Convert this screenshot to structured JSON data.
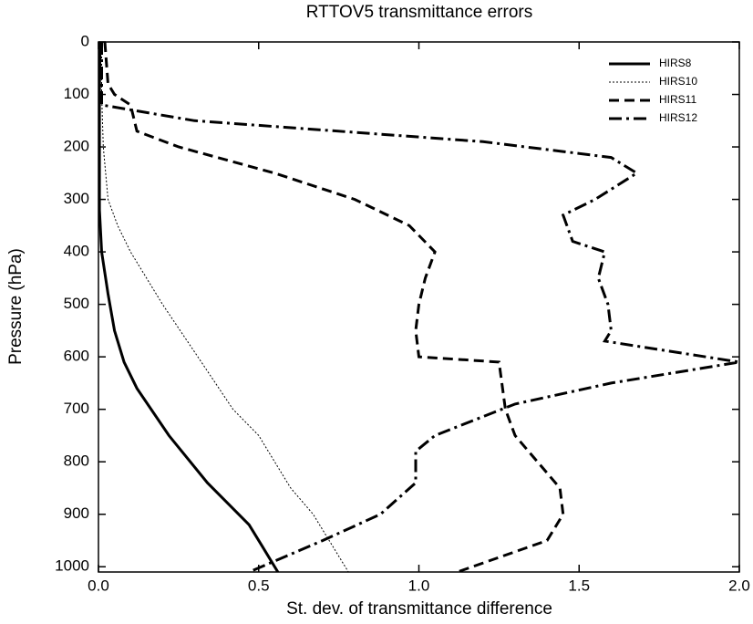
{
  "chart_data": {
    "type": "line",
    "title": "RTTOV5 transmittance errors",
    "xlabel": "St. dev. of transmittance difference",
    "ylabel": "Pressure (hPa)",
    "xlim": [
      0,
      2
    ],
    "ylim": [
      0,
      1010
    ],
    "y_inverted": true,
    "xticks": [
      {
        "value": 0,
        "label": "0.0"
      },
      0.5,
      {
        "value": 1,
        "label": "1.0"
      },
      1.5,
      {
        "value": 2,
        "label": "2.0"
      }
    ],
    "yticks": [
      0,
      100,
      200,
      300,
      400,
      500,
      600,
      700,
      800,
      900,
      1000
    ],
    "legend": "upper right",
    "series": [
      {
        "name": "HIRS8",
        "color": "#000000",
        "style": "solid",
        "y": [
          0,
          100,
          200,
          320,
          400,
          480,
          550,
          610,
          660,
          750,
          840,
          920,
          960,
          1010
        ],
        "values": [
          0.005,
          0.003,
          0.003,
          0.003,
          0.01,
          0.03,
          0.05,
          0.08,
          0.12,
          0.22,
          0.34,
          0.47,
          0.51,
          0.56
        ]
      },
      {
        "name": "HIRS10",
        "color": "#000000",
        "style": "dotted",
        "y": [
          0,
          100,
          200,
          300,
          350,
          400,
          500,
          600,
          700,
          750,
          800,
          850,
          900,
          950,
          1010
        ],
        "values": [
          0.01,
          0.01,
          0.015,
          0.03,
          0.06,
          0.1,
          0.2,
          0.31,
          0.42,
          0.5,
          0.55,
          0.6,
          0.67,
          0.72,
          0.78
        ]
      },
      {
        "name": "HIRS11",
        "color": "#000000",
        "style": "dashed",
        "y": [
          0,
          80,
          100,
          120,
          170,
          200,
          250,
          300,
          350,
          400,
          450,
          500,
          550,
          600,
          610,
          700,
          750,
          800,
          850,
          900,
          950,
          1010
        ],
        "values": [
          0.02,
          0.03,
          0.05,
          0.1,
          0.12,
          0.25,
          0.55,
          0.8,
          0.97,
          1.05,
          1.02,
          1.0,
          0.99,
          1.0,
          1.25,
          1.27,
          1.3,
          1.37,
          1.44,
          1.45,
          1.4,
          1.12
        ]
      },
      {
        "name": "HIRS12",
        "color": "#000000",
        "style": "dashdot",
        "y": [
          0,
          100,
          120,
          150,
          190,
          220,
          250,
          300,
          330,
          380,
          400,
          450,
          500,
          550,
          570,
          610,
          650,
          690,
          750,
          780,
          840,
          900,
          950,
          1010
        ],
        "values": [
          0.01,
          0.01,
          0.01,
          0.3,
          1.2,
          1.6,
          1.68,
          1.55,
          1.45,
          1.48,
          1.58,
          1.56,
          1.59,
          1.6,
          1.58,
          2.0,
          1.6,
          1.3,
          1.05,
          0.99,
          0.99,
          0.88,
          0.7,
          0.47
        ]
      }
    ]
  }
}
